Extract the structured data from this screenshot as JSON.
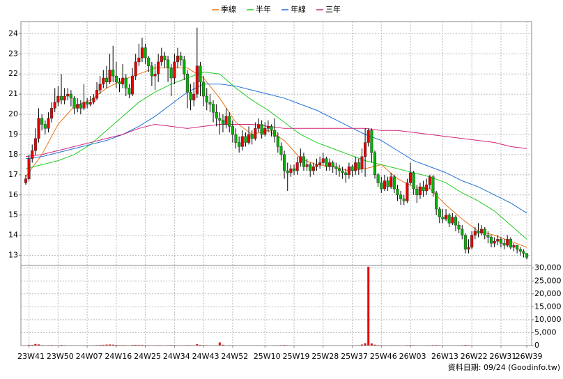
{
  "chart_data": {
    "type": "candlestick",
    "legend": "top",
    "grid": true,
    "up_color": "#e60000",
    "down_color": "#00b400",
    "wick_color": "#000000",
    "footnote": "資料日期: 09/24 (Goodinfo.tw)",
    "xlim": [
      -1.5,
      156.5
    ],
    "xticks": [
      {
        "value": 1,
        "label": "23W41"
      },
      {
        "value": 10,
        "label": "23W50"
      },
      {
        "value": 19,
        "label": "24W07"
      },
      {
        "value": 28,
        "label": "24W16"
      },
      {
        "value": 37,
        "label": "24W25"
      },
      {
        "value": 46,
        "label": "24W34"
      },
      {
        "value": 55,
        "label": "24W43"
      },
      {
        "value": 64,
        "label": "24W52"
      },
      {
        "value": 74,
        "label": "25W10"
      },
      {
        "value": 83,
        "label": "25W19"
      },
      {
        "value": 92,
        "label": "25W28"
      },
      {
        "value": 101,
        "label": "25W37"
      },
      {
        "value": 110,
        "label": "25W46"
      },
      {
        "value": 119,
        "label": "26W03"
      },
      {
        "value": 129,
        "label": "26W13"
      },
      {
        "value": 138,
        "label": "26W22"
      },
      {
        "value": 147,
        "label": "26W31"
      },
      {
        "value": 155,
        "label": "26W39"
      }
    ],
    "ylim": [
      12.5,
      24.6
    ],
    "yticks": [
      13,
      14,
      15,
      16,
      17,
      18,
      19,
      20,
      21,
      22,
      23,
      24
    ],
    "y2lim": [
      0,
      31000
    ],
    "y2ticks": [
      0,
      {
        "value": 5000,
        "label": "5,000"
      },
      {
        "value": 10000,
        "label": "10,000"
      },
      {
        "value": 15000,
        "label": "15,000"
      },
      {
        "value": 20000,
        "label": "20,000"
      },
      {
        "value": 25000,
        "label": "25,000"
      },
      {
        "value": 30000,
        "label": "30,000"
      }
    ],
    "x": [
      0,
      1,
      2,
      3,
      4,
      5,
      6,
      7,
      8,
      9,
      10,
      11,
      12,
      13,
      14,
      15,
      16,
      17,
      18,
      19,
      20,
      21,
      22,
      23,
      24,
      25,
      26,
      27,
      28,
      29,
      30,
      31,
      32,
      33,
      34,
      35,
      36,
      37,
      38,
      39,
      40,
      41,
      42,
      43,
      44,
      45,
      46,
      47,
      48,
      49,
      50,
      51,
      52,
      53,
      54,
      55,
      56,
      57,
      58,
      59,
      60,
      61,
      62,
      63,
      64,
      65,
      66,
      67,
      68,
      69,
      70,
      71,
      72,
      73,
      74,
      75,
      76,
      77,
      78,
      79,
      80,
      81,
      82,
      83,
      84,
      85,
      86,
      87,
      88,
      89,
      90,
      91,
      92,
      93,
      94,
      95,
      96,
      97,
      98,
      99,
      100,
      101,
      102,
      103,
      104,
      105,
      106,
      107,
      108,
      109,
      110,
      111,
      112,
      113,
      114,
      115,
      116,
      117,
      118,
      119,
      120,
      121,
      122,
      123,
      124,
      125,
      126,
      127,
      128,
      129,
      130,
      131,
      132,
      133,
      134,
      135,
      136,
      137,
      138,
      139,
      140,
      141,
      142,
      143,
      144,
      145,
      146,
      147,
      148,
      149,
      150,
      151,
      152,
      153,
      154,
      155
    ],
    "open": [
      16.6,
      16.8,
      17.8,
      18.2,
      18.8,
      19.8,
      19.5,
      19.3,
      19.8,
      20.3,
      20.6,
      20.9,
      20.7,
      20.9,
      21.0,
      20.8,
      20.3,
      20.5,
      20.3,
      20.6,
      20.5,
      20.6,
      20.8,
      21.2,
      21.5,
      21.8,
      21.6,
      22.2,
      21.9,
      21.6,
      21.5,
      21.8,
      21.3,
      21.0,
      21.9,
      22.6,
      22.8,
      23.3,
      22.8,
      22.4,
      21.9,
      22.0,
      22.6,
      22.9,
      22.7,
      22.3,
      21.8,
      22.6,
      22.9,
      22.7,
      22.0,
      21.1,
      20.7,
      21.0,
      22.4,
      21.6,
      20.9,
      20.6,
      20.5,
      20.1,
      19.8,
      19.7,
      19.5,
      19.9,
      19.4,
      19.0,
      18.6,
      18.4,
      18.9,
      18.6,
      19.0,
      18.8,
      19.3,
      19.5,
      19.0,
      19.3,
      19.4,
      19.2,
      18.9,
      18.4,
      18.0,
      17.2,
      17.1,
      17.3,
      17.2,
      17.6,
      17.9,
      17.4,
      17.5,
      17.2,
      17.4,
      17.5,
      17.6,
      17.8,
      17.4,
      17.6,
      17.4,
      17.3,
      17.2,
      17.1,
      17.0,
      17.4,
      17.2,
      17.6,
      17.3,
      17.9,
      18.6,
      19.2,
      18.1,
      17.0,
      16.6,
      16.3,
      16.7,
      16.4,
      16.9,
      16.3,
      16.0,
      15.8,
      15.7,
      16.6,
      17.1,
      16.3,
      16.0,
      16.4,
      16.2,
      16.5,
      16.9,
      16.1,
      15.3,
      14.9,
      14.8,
      15.0,
      14.6,
      14.9,
      14.5,
      14.3,
      14.0,
      13.3,
      13.4,
      14.0,
      14.2,
      14.1,
      14.3,
      14.0,
      13.9,
      13.6,
      13.7,
      13.8,
      13.6,
      13.5,
      13.8,
      13.4,
      13.5,
      13.3,
      13.2,
      13.1
    ],
    "high": [
      17.0,
      18.0,
      18.5,
      19.3,
      20.3,
      20.0,
      19.7,
      20.1,
      20.6,
      21.3,
      21.4,
      22.0,
      21.3,
      21.3,
      21.2,
      20.9,
      20.8,
      20.7,
      21.5,
      20.8,
      20.9,
      21.0,
      21.6,
      21.9,
      22.2,
      22.4,
      23.0,
      23.4,
      22.6,
      21.8,
      22.5,
      22.0,
      21.5,
      22.3,
      23.0,
      23.5,
      23.8,
      23.5,
      22.9,
      22.6,
      22.5,
      23.0,
      23.3,
      23.1,
      22.9,
      22.5,
      23.0,
      23.3,
      23.1,
      22.9,
      22.2,
      21.5,
      21.6,
      24.3,
      22.6,
      21.9,
      21.3,
      21.0,
      20.7,
      20.5,
      20.1,
      20.0,
      20.3,
      20.1,
      19.7,
      19.3,
      18.9,
      19.2,
      19.1,
      19.4,
      19.2,
      19.6,
      19.8,
      19.7,
      19.6,
      19.7,
      19.5,
      19.8,
      19.1,
      18.6,
      18.2,
      17.6,
      17.5,
      17.5,
      17.9,
      18.3,
      18.1,
      17.8,
      17.6,
      17.6,
      17.8,
      17.9,
      18.1,
      17.9,
      17.8,
      17.7,
      17.6,
      17.5,
      17.4,
      17.3,
      17.6,
      17.5,
      17.9,
      17.8,
      18.3,
      19.3,
      19.3,
      19.3,
      18.2,
      17.1,
      16.9,
      17.0,
      16.9,
      17.1,
      17.0,
      16.5,
      16.2,
      16.0,
      16.8,
      17.6,
      17.2,
      16.5,
      16.6,
      16.7,
      16.8,
      17.0,
      17.0,
      16.2,
      15.4,
      15.3,
      15.3,
      15.1,
      15.1,
      15.0,
      14.7,
      14.5,
      14.1,
      13.8,
      14.2,
      14.4,
      14.6,
      14.5,
      14.4,
      14.2,
      14.0,
      13.9,
      14.0,
      13.9,
      13.8,
      14.0,
      13.9,
      13.6,
      13.5,
      13.4,
      13.3,
      13.1
    ],
    "low": [
      16.5,
      16.7,
      17.6,
      18.0,
      18.6,
      19.2,
      19.0,
      19.1,
      19.6,
      20.1,
      20.4,
      20.5,
      20.5,
      20.7,
      20.4,
      20.0,
      20.1,
      20.0,
      20.2,
      20.3,
      20.4,
      20.5,
      20.7,
      21.0,
      21.3,
      21.3,
      21.5,
      21.6,
      21.3,
      21.1,
      21.3,
      20.9,
      20.8,
      20.9,
      21.7,
      22.4,
      22.6,
      22.5,
      22.1,
      21.4,
      21.2,
      21.6,
      22.4,
      22.3,
      21.6,
      20.9,
      21.5,
      22.3,
      22.4,
      21.7,
      20.3,
      20.2,
      20.4,
      20.8,
      20.9,
      20.4,
      20.2,
      20.1,
      19.6,
      19.4,
      19.0,
      19.1,
      19.3,
      19.1,
      18.6,
      18.3,
      18.1,
      18.2,
      18.4,
      18.5,
      18.5,
      18.7,
      19.1,
      18.8,
      18.9,
      19.1,
      18.9,
      18.6,
      18.1,
      17.7,
      16.8,
      16.2,
      16.9,
      17.0,
      17.0,
      17.4,
      17.2,
      17.2,
      16.9,
      17.0,
      17.2,
      17.3,
      17.5,
      17.2,
      17.2,
      17.1,
      17.0,
      16.9,
      16.8,
      16.6,
      16.8,
      16.9,
      17.0,
      17.0,
      17.1,
      16.9,
      18.4,
      17.6,
      16.8,
      16.4,
      16.1,
      16.2,
      16.2,
      16.3,
      16.1,
      15.7,
      15.5,
      15.5,
      15.6,
      16.5,
      16.0,
      15.6,
      15.8,
      15.9,
      16.0,
      16.3,
      15.9,
      15.0,
      14.6,
      14.6,
      14.7,
      14.4,
      14.5,
      14.2,
      14.1,
      13.8,
      13.1,
      13.1,
      13.3,
      13.8,
      13.9,
      14.0,
      13.8,
      13.6,
      13.4,
      13.4,
      13.5,
      13.4,
      13.3,
      13.4,
      13.3,
      13.2,
      13.1,
      13.0,
      12.9,
      12.8
    ],
    "close": [
      16.8,
      17.8,
      18.2,
      18.8,
      19.8,
      19.5,
      19.3,
      19.8,
      20.3,
      20.6,
      20.9,
      20.7,
      20.9,
      21.0,
      20.8,
      20.3,
      20.5,
      20.3,
      20.6,
      20.5,
      20.6,
      20.8,
      21.2,
      21.5,
      21.8,
      21.6,
      22.2,
      21.9,
      21.6,
      21.5,
      21.8,
      21.3,
      21.0,
      21.9,
      22.6,
      22.8,
      23.3,
      22.8,
      22.4,
      21.9,
      22.0,
      22.6,
      22.9,
      22.7,
      22.3,
      21.8,
      22.6,
      22.9,
      22.7,
      22.0,
      21.1,
      20.7,
      21.0,
      22.4,
      21.6,
      20.9,
      20.6,
      20.5,
      20.1,
      19.8,
      19.7,
      19.5,
      19.9,
      19.4,
      19.0,
      18.6,
      18.4,
      18.9,
      18.6,
      19.0,
      18.8,
      19.3,
      19.5,
      19.0,
      19.3,
      19.4,
      19.2,
      18.9,
      18.4,
      18.0,
      17.2,
      17.1,
      17.3,
      17.2,
      17.6,
      17.9,
      17.4,
      17.5,
      17.2,
      17.4,
      17.5,
      17.6,
      17.8,
      17.4,
      17.6,
      17.4,
      17.3,
      17.2,
      17.1,
      17.0,
      17.4,
      17.2,
      17.6,
      17.3,
      17.9,
      18.6,
      19.2,
      18.1,
      17.0,
      16.6,
      16.3,
      16.7,
      16.4,
      16.9,
      16.3,
      16.0,
      15.8,
      15.7,
      16.6,
      17.1,
      16.3,
      16.0,
      16.4,
      16.2,
      16.5,
      16.9,
      16.1,
      15.3,
      14.9,
      14.8,
      15.0,
      14.6,
      14.9,
      14.5,
      14.3,
      14.0,
      13.3,
      13.4,
      14.0,
      14.2,
      14.1,
      14.3,
      14.0,
      13.9,
      13.6,
      13.7,
      13.8,
      13.6,
      13.5,
      13.8,
      13.4,
      13.5,
      13.3,
      13.2,
      13.1,
      12.9
    ],
    "volume": {
      "color": "#e60000",
      "values": [
        120,
        300,
        250,
        600,
        450,
        200,
        150,
        180,
        220,
        160,
        140,
        260,
        180,
        130,
        110,
        150,
        120,
        100,
        160,
        140,
        130,
        170,
        200,
        260,
        300,
        380,
        420,
        350,
        280,
        200,
        220,
        180,
        150,
        260,
        300,
        250,
        280,
        200,
        170,
        150,
        160,
        200,
        180,
        150,
        170,
        220,
        190,
        160,
        150,
        180,
        210,
        170,
        150,
        520,
        260,
        200,
        160,
        140,
        130,
        150,
        1200,
        300,
        150,
        180,
        140,
        130,
        120,
        110,
        140,
        120,
        130,
        150,
        160,
        120,
        140,
        130,
        120,
        150,
        170,
        200,
        260,
        180,
        130,
        120,
        140,
        150,
        120,
        110,
        100,
        120,
        130,
        110,
        120,
        100,
        110,
        100,
        90,
        100,
        110,
        120,
        130,
        120,
        150,
        160,
        400,
        900,
        30500,
        800,
        350,
        200,
        180,
        150,
        140,
        160,
        170,
        150,
        140,
        130,
        200,
        250,
        180,
        150,
        140,
        130,
        160,
        180,
        200,
        220,
        170,
        150,
        140,
        150,
        130,
        140,
        150,
        200,
        260,
        180,
        170,
        150,
        140,
        130,
        120,
        130,
        140,
        120,
        110,
        120,
        130,
        120,
        130,
        110,
        100,
        120,
        110,
        130
      ]
    },
    "series": [
      {
        "name": "季線",
        "color": "#e8751a",
        "x": [
          0,
          5,
          10,
          15,
          20,
          25,
          30,
          35,
          40,
          45,
          50,
          55,
          60,
          65,
          70,
          75,
          80,
          85,
          90,
          95,
          100,
          105,
          110,
          115,
          120,
          125,
          130,
          135,
          140,
          145,
          150,
          155
        ],
        "values": [
          16.9,
          18.0,
          19.5,
          20.4,
          20.7,
          21.3,
          21.7,
          22.0,
          22.3,
          22.3,
          22.3,
          21.8,
          20.8,
          19.6,
          19.0,
          19.2,
          18.7,
          17.8,
          17.5,
          17.4,
          17.2,
          17.3,
          17.5,
          16.8,
          16.4,
          16.3,
          15.5,
          14.8,
          14.2,
          14.0,
          13.7,
          13.4
        ]
      },
      {
        "name": "半年",
        "color": "#22cc22",
        "x": [
          0,
          5,
          10,
          15,
          20,
          25,
          30,
          35,
          40,
          45,
          50,
          55,
          60,
          65,
          70,
          75,
          80,
          85,
          90,
          95,
          100,
          105,
          110,
          115,
          120,
          125,
          130,
          135,
          140,
          145,
          150,
          155
        ],
        "values": [
          17.3,
          17.5,
          17.7,
          18.0,
          18.5,
          19.2,
          19.9,
          20.6,
          21.1,
          21.5,
          21.8,
          22.1,
          22.0,
          21.3,
          20.7,
          20.2,
          19.6,
          19.0,
          18.6,
          18.3,
          18.0,
          17.7,
          17.5,
          17.3,
          17.1,
          16.9,
          16.6,
          16.1,
          15.7,
          15.2,
          14.5,
          13.8
        ]
      },
      {
        "name": "年線",
        "color": "#1f6fd6",
        "x": [
          0,
          5,
          10,
          15,
          20,
          25,
          30,
          35,
          40,
          45,
          50,
          55,
          60,
          65,
          70,
          75,
          80,
          85,
          90,
          95,
          100,
          105,
          110,
          115,
          120,
          125,
          130,
          135,
          140,
          145,
          150,
          155
        ],
        "values": [
          17.8,
          17.9,
          18.1,
          18.3,
          18.5,
          18.7,
          19.0,
          19.4,
          19.9,
          20.5,
          21.1,
          21.5,
          21.5,
          21.4,
          21.2,
          21.0,
          20.8,
          20.5,
          20.2,
          19.8,
          19.4,
          19.0,
          18.7,
          18.2,
          17.7,
          17.4,
          17.1,
          16.7,
          16.4,
          16.0,
          15.6,
          15.1
        ]
      },
      {
        "name": "三年",
        "color": "#d0267a",
        "x": [
          0,
          5,
          10,
          15,
          20,
          25,
          30,
          35,
          40,
          45,
          50,
          55,
          60,
          65,
          70,
          75,
          80,
          85,
          90,
          95,
          100,
          105,
          110,
          115,
          120,
          125,
          130,
          135,
          140,
          145,
          150,
          155
        ],
        "values": [
          17.9,
          18.0,
          18.2,
          18.4,
          18.6,
          18.8,
          19.0,
          19.3,
          19.5,
          19.4,
          19.3,
          19.4,
          19.5,
          19.5,
          19.5,
          19.4,
          19.3,
          19.3,
          19.3,
          19.3,
          19.3,
          19.3,
          19.2,
          19.2,
          19.1,
          19.0,
          18.9,
          18.8,
          18.7,
          18.6,
          18.4,
          18.3
        ]
      }
    ]
  }
}
